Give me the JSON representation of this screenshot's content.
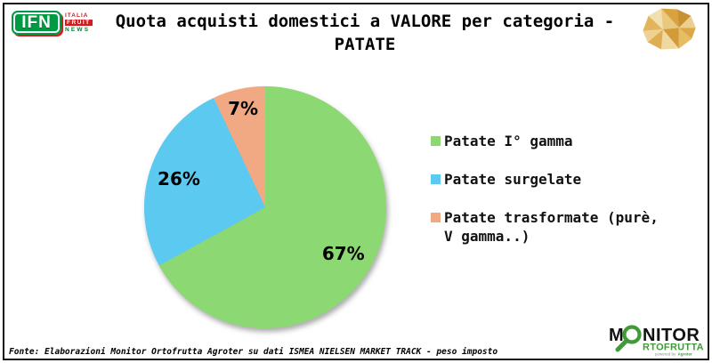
{
  "header": {
    "title": "Quota acquisti domestici a VALORE per categoria - PATATE"
  },
  "logos": {
    "ifn": {
      "initials": "IFN",
      "line1": "ITALIA",
      "line2": "FRUIT",
      "line3": "NEWS"
    },
    "monitor": {
      "m_part": "M",
      "nitor_part": "NITOR",
      "line2": "RTOFRUTTA",
      "powered_by": "powered by",
      "agroter": "Agroter"
    },
    "potato_icon": "low-poly-potato"
  },
  "chart_data": {
    "type": "pie",
    "title": "Quota acquisti domestici a VALORE per categoria - PATATE",
    "legend_position": "right",
    "start_angle_deg": 0,
    "direction": "clockwise",
    "total": 100,
    "series": [
      {
        "label": "Patate I° gamma",
        "value": 67,
        "pct_label": "67%",
        "color": "#8CD973"
      },
      {
        "label": "Patate surgelate",
        "value": 26,
        "pct_label": "26%",
        "color": "#5CC9F0"
      },
      {
        "label": "Patate trasformate (purè, V gamma..)",
        "value": 7,
        "pct_label": "7%",
        "color": "#F1A983"
      }
    ]
  },
  "footer": {
    "source": "Fonte: Elaborazioni Monitor Ortofrutta Agroter su dati ISMEA NIELSEN MARKET TRACK - peso imposto"
  },
  "colors": {
    "ifn_green": "#009A44",
    "ifn_red": "#D71920",
    "monitor_green": "#3E9B35",
    "slice_green": "#8CD973",
    "slice_blue": "#5CC9F0",
    "slice_orange": "#F1A983"
  }
}
